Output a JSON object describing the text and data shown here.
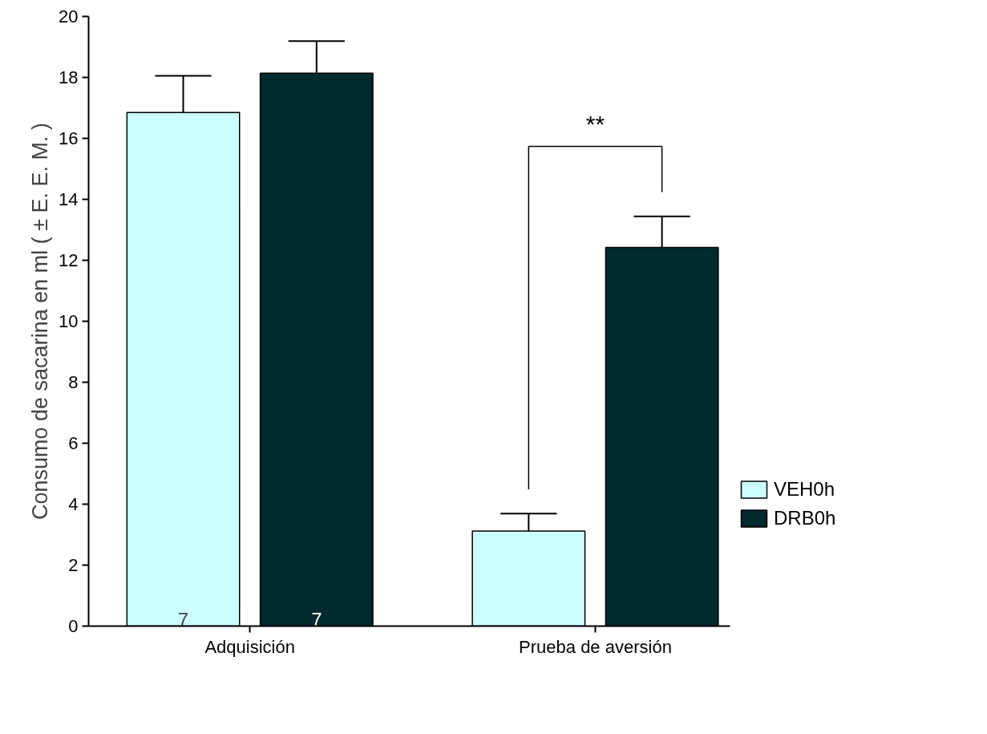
{
  "chart_data": {
    "type": "bar",
    "ylabel": "Consumo de sacarina en ml ( ± E. E. M. )",
    "categories": [
      "Adquisición",
      "Prueba de aversión"
    ],
    "series": [
      {
        "name": "VEH0h",
        "color": "#ccffff",
        "values": [
          16.85,
          3.12
        ],
        "errors": [
          [
            16.85,
            18.05
          ],
          [
            3.12,
            3.69
          ]
        ]
      },
      {
        "name": "DRB0h",
        "color": "#002b2e",
        "values": [
          18.14,
          12.42
        ],
        "errors": [
          [
            18.14,
            19.19
          ],
          [
            12.42,
            13.44
          ]
        ]
      }
    ],
    "ylim": [
      0,
      20
    ],
    "yticks": [
      0,
      2,
      4,
      6,
      8,
      10,
      12,
      14,
      16,
      18,
      20
    ],
    "annotations": [
      "**",
      "7",
      "7"
    ],
    "legend": "right",
    "grid": false
  }
}
